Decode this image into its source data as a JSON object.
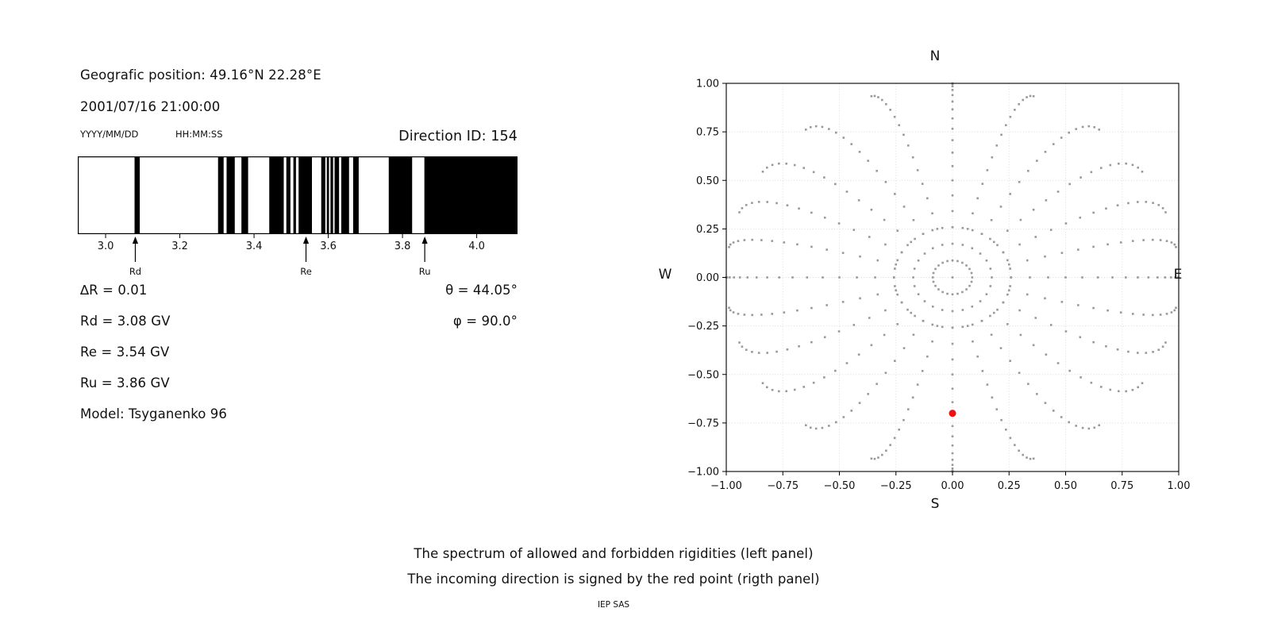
{
  "header": {
    "geo_position": "Geografic position: 49.16°N 22.28°E",
    "datetime": "2001/07/16 21:00:00",
    "date_format": "YYYY/MM/DD",
    "time_format": "HH:MM:SS",
    "direction_id": "Direction ID: 154"
  },
  "info": {
    "lines": [
      "∆R = 0.01",
      "Rd = 3.08 GV",
      "Re = 3.54 GV",
      "Ru = 3.86 GV",
      "Model: Tsyganenko 96"
    ],
    "angle_lines": [
      "θ = 44.05°",
      "φ = 90.0°"
    ]
  },
  "captions": {
    "line1": "The spectrum of allowed and forbidden rigidities (left panel)",
    "line2": "The incoming direction is signed by the red point (rigth panel)",
    "credit": "IEP SAS"
  },
  "colors": {
    "bar": "#000000",
    "dot_gray": "#999999",
    "red_point": "#ee1111",
    "grid": "#d9d9d9",
    "axis": "#000000"
  },
  "chart_data": [
    {
      "type": "bar",
      "panel": "left",
      "title": "Spectrum of allowed (white) and forbidden (black) rigidities",
      "xlim": [
        2.925,
        4.11
      ],
      "xticks": [
        {
          "v": 3.0,
          "label": "3.0"
        },
        {
          "v": 3.2,
          "label": "3.2"
        },
        {
          "v": 3.4,
          "label": "3.4"
        },
        {
          "v": 3.6,
          "label": "3.6"
        },
        {
          "v": 3.8,
          "label": "3.8"
        },
        {
          "v": 4.0,
          "label": "4.0"
        }
      ],
      "forbidden_bands_GV": [
        [
          3.078,
          3.092
        ],
        [
          3.303,
          3.318
        ],
        [
          3.326,
          3.348
        ],
        [
          3.366,
          3.384
        ],
        [
          3.441,
          3.48
        ],
        [
          3.487,
          3.498
        ],
        [
          3.506,
          3.513
        ],
        [
          3.52,
          3.556
        ],
        [
          3.581,
          3.592
        ],
        [
          3.596,
          3.602
        ],
        [
          3.606,
          3.613
        ],
        [
          3.617,
          3.629
        ],
        [
          3.635,
          3.656
        ],
        [
          3.667,
          3.682
        ],
        [
          3.763,
          3.826
        ],
        [
          3.859,
          4.11
        ]
      ],
      "markers": [
        {
          "label": "Rd",
          "value": 3.08
        },
        {
          "label": "Re",
          "value": 3.54
        },
        {
          "label": "Ru",
          "value": 3.86
        }
      ],
      "delta_R_GV": 0.01,
      "Rd_GV": 3.08,
      "Re_GV": 3.54,
      "Ru_GV": 3.86,
      "model": "Tsyganenko 96",
      "theta_deg": 44.05,
      "phi_deg": 90.0,
      "direction_id": 154
    },
    {
      "type": "scatter",
      "panel": "right",
      "title": "Incoming direction map (red point = incoming direction)",
      "xlim": [
        -1.0,
        1.0
      ],
      "ylim": [
        -1.0,
        1.0
      ],
      "grid": true,
      "xticks": [
        {
          "v": -1.0,
          "label": "−1.00"
        },
        {
          "v": -0.75,
          "label": "−0.75"
        },
        {
          "v": -0.5,
          "label": "−0.50"
        },
        {
          "v": -0.25,
          "label": "−0.25"
        },
        {
          "v": 0.0,
          "label": "0.00"
        },
        {
          "v": 0.25,
          "label": "0.25"
        },
        {
          "v": 0.5,
          "label": "0.50"
        },
        {
          "v": 0.75,
          "label": "0.75"
        },
        {
          "v": 1.0,
          "label": "1.00"
        }
      ],
      "yticks": [
        {
          "v": -1.0,
          "label": "−1.00"
        },
        {
          "v": -0.75,
          "label": "−0.75"
        },
        {
          "v": -0.5,
          "label": "−0.50"
        },
        {
          "v": -0.25,
          "label": "−0.25"
        },
        {
          "v": 0.0,
          "label": "0.00"
        },
        {
          "v": 0.25,
          "label": "0.25"
        },
        {
          "v": 0.5,
          "label": "0.50"
        },
        {
          "v": 0.75,
          "label": "0.75"
        },
        {
          "v": 1.0,
          "label": "1.00"
        }
      ],
      "compass": {
        "n": "N",
        "s": "S",
        "w": "W",
        "e": "E"
      },
      "gray_direction_grid": {
        "azimuth_step_deg": 15,
        "zenith_min_deg": 5,
        "zenith_max_deg": 90,
        "zenith_step_deg": 5,
        "radius_rule": "r = sin(zenith)",
        "curvature_max_deg": 12,
        "ring_zenith_deg": 15,
        "ring_azimuth_step_deg": 10,
        "center_dot": [
          0.0,
          0.0
        ]
      },
      "red_point": {
        "x": 0.0,
        "y": -0.7
      }
    }
  ]
}
